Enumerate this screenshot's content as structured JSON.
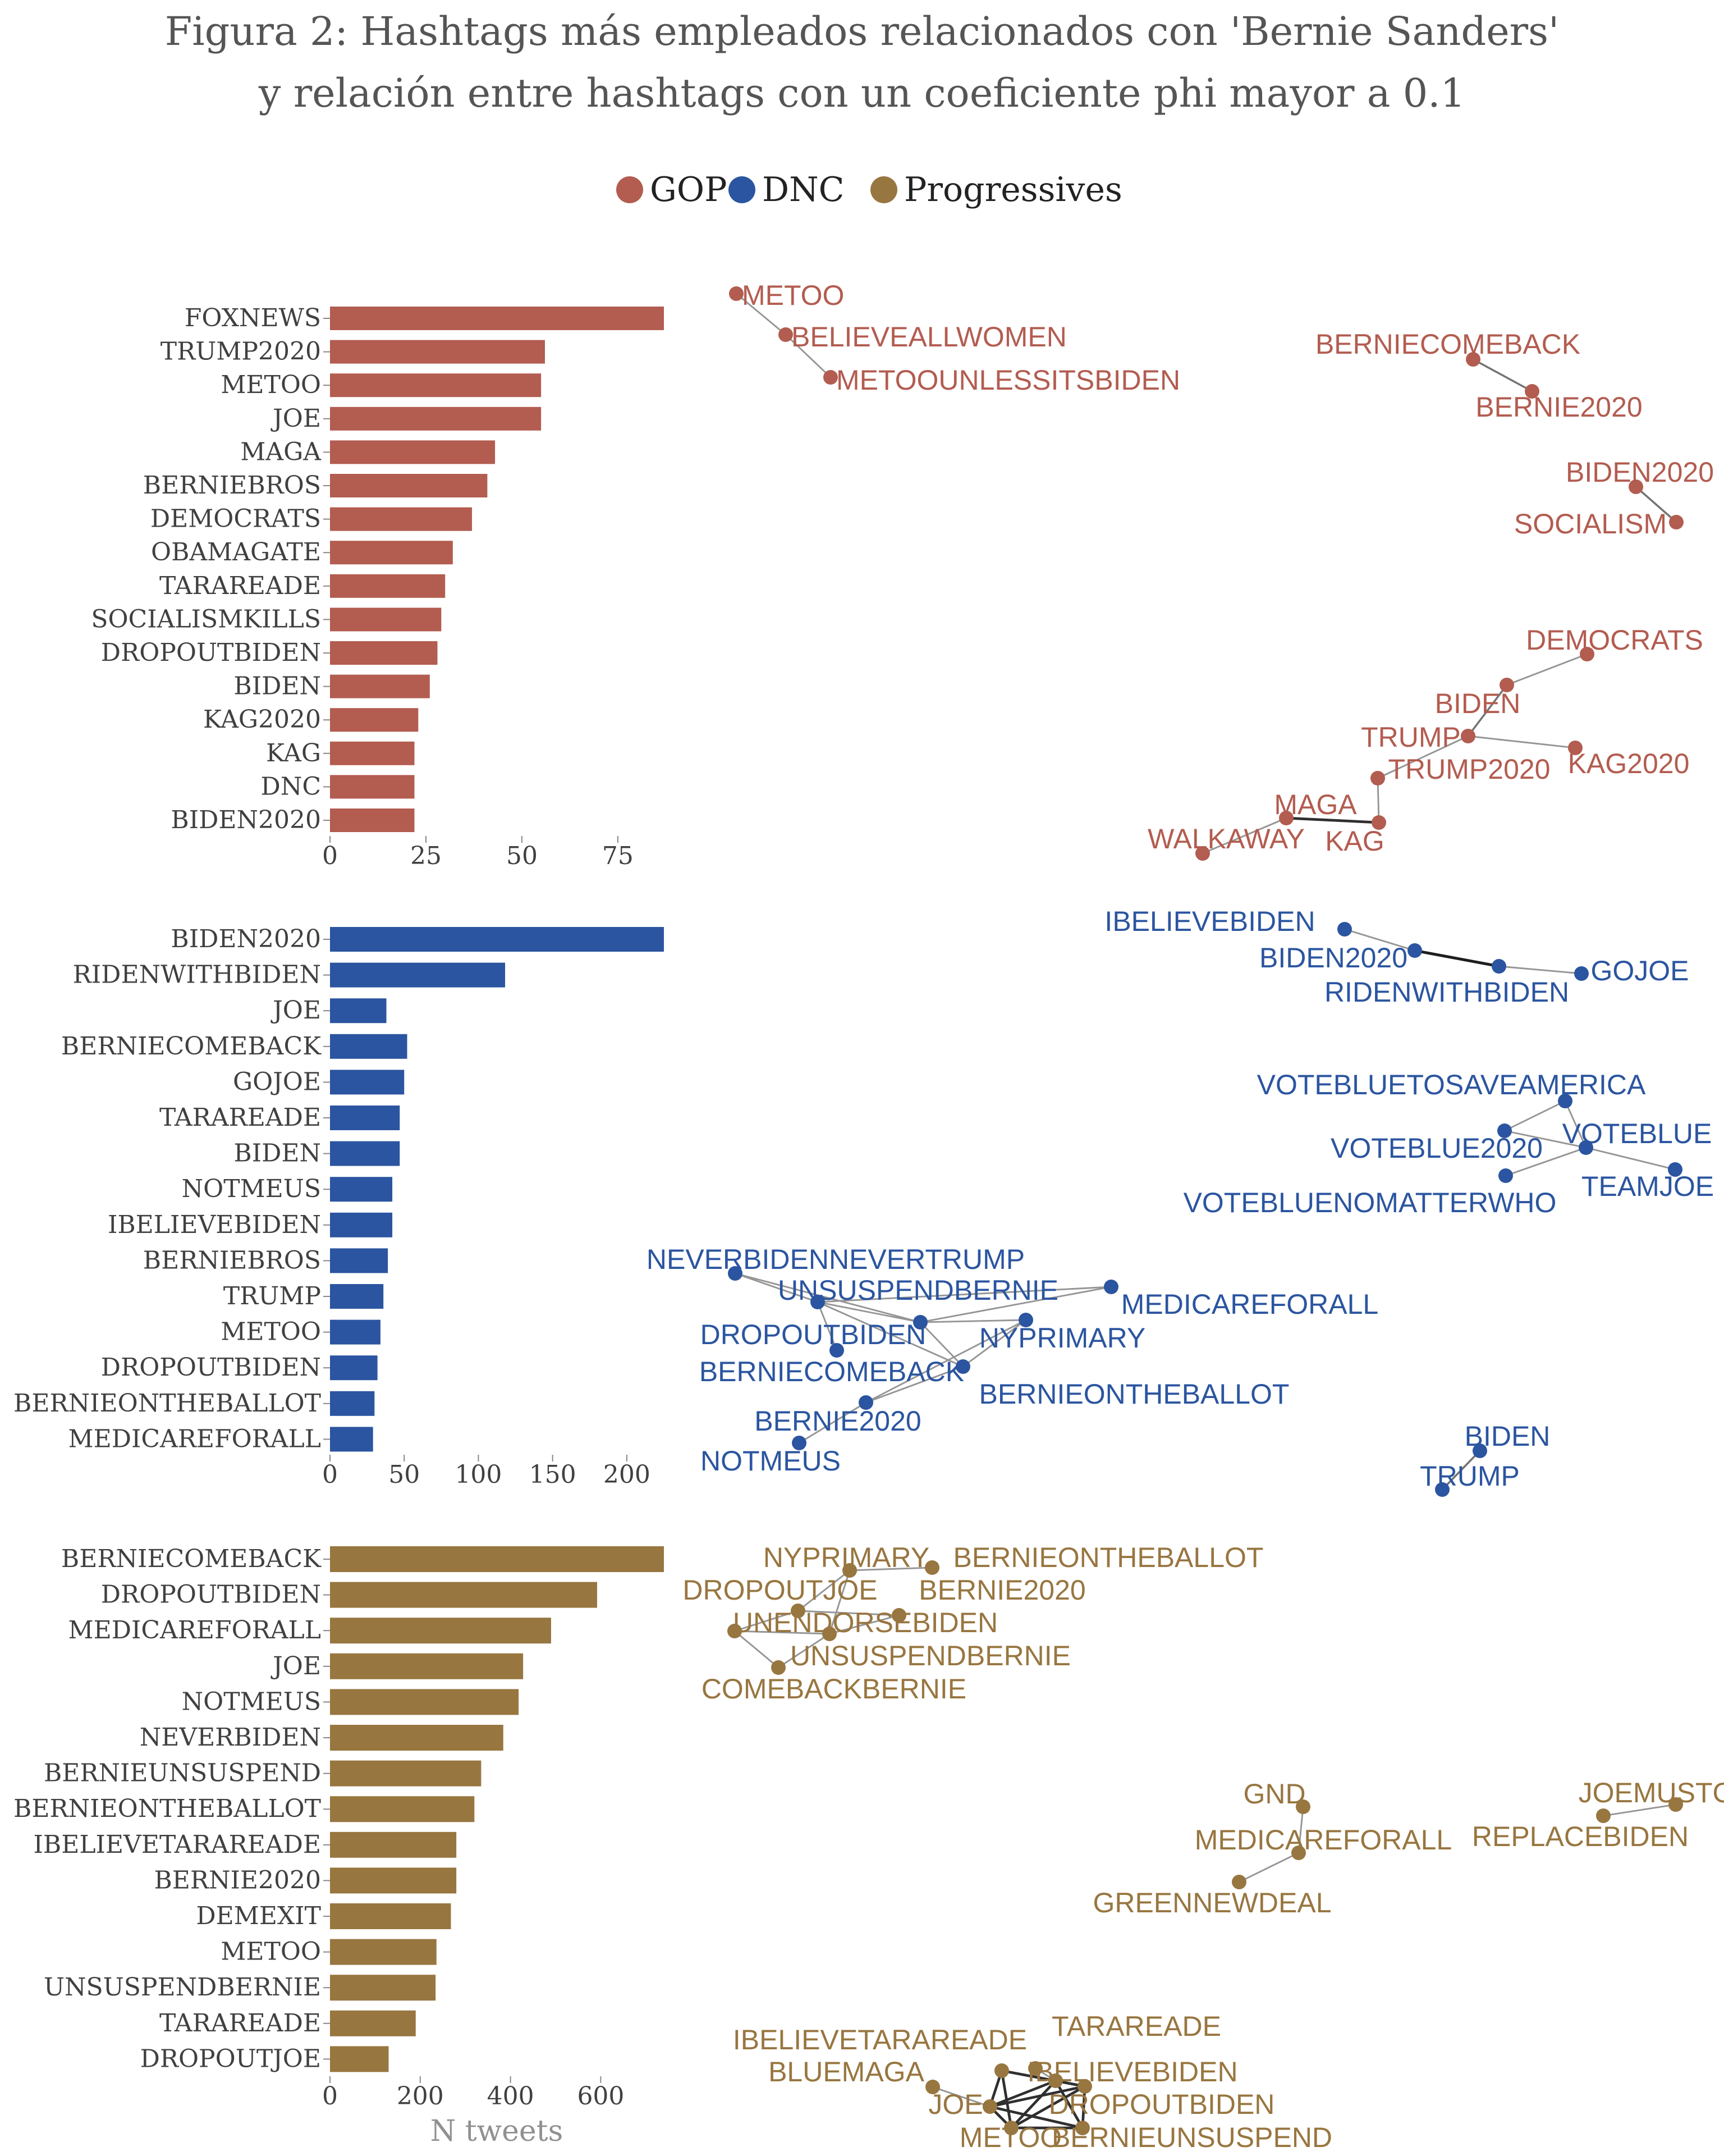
{
  "title_line1": "Figura 2: Hashtags más empleados relacionados con 'Bernie Sanders'",
  "title_line2": "y relación entre hashtags con un coeficiente phi mayor a 0.1",
  "legend": [
    {
      "label": "GOP",
      "color": "#b35c50"
    },
    {
      "label": "DNC",
      "color": "#2b55a0"
    },
    {
      "label": "Progressives",
      "color": "#987640"
    }
  ],
  "x_axis_label": "N tweets",
  "text_color": "#404040",
  "chart_data": [
    {
      "type": "bar",
      "orientation": "horizontal",
      "group": "GOP",
      "color": "#b35c50",
      "categories": [
        "FOXNEWS",
        "TRUMP2020",
        "METOO",
        "JOE",
        "MAGA",
        "BERNIEBROS",
        "DEMOCRATS",
        "OBAMAGATE",
        "TARAREADE",
        "SOCIALISMKILLS",
        "DROPOUTBIDEN",
        "BIDEN",
        "KAG2020",
        "KAG",
        "DNC",
        "BIDEN2020"
      ],
      "values": [
        87,
        56,
        55,
        55,
        43,
        41,
        37,
        32,
        30,
        29,
        28,
        26,
        23,
        22,
        22,
        22
      ],
      "xlim": [
        0,
        87
      ],
      "ticks": [
        0,
        25,
        50,
        75
      ]
    },
    {
      "type": "bar",
      "orientation": "horizontal",
      "group": "DNC",
      "color": "#2b55a0",
      "categories": [
        "BIDEN2020",
        "RIDENWITHBIDEN",
        "JOE",
        "BERNIECOMEBACK",
        "GOJOE",
        "TARAREADE",
        "BIDEN",
        "NOTMEUS",
        "IBELIEVEBIDEN",
        "BERNIEBROS",
        "TRUMP",
        "METOO",
        "DROPOUTBIDEN",
        "BERNIEONTHEBALLOT",
        "MEDICAREFORALL"
      ],
      "values": [
        225,
        118,
        38,
        52,
        50,
        47,
        47,
        42,
        42,
        39,
        36,
        34,
        32,
        30,
        29
      ],
      "xlim": [
        0,
        225
      ],
      "ticks": [
        0,
        50,
        100,
        150,
        200
      ]
    },
    {
      "type": "bar",
      "orientation": "horizontal",
      "group": "Progressives",
      "color": "#987640",
      "categories": [
        "BERNIECOMEBACK",
        "DROPOUTBIDEN",
        "MEDICAREFORALL",
        "JOE",
        "NOTMEUS",
        "NEVERBIDEN",
        "BERNIEUNSUSPEND",
        "BERNIEONTHEBALLOT",
        "IBELIEVETARAREADE",
        "BERNIE2020",
        "DEMEXIT",
        "METOO",
        "UNSUSPENDBERNIE",
        "TARAREADE",
        "DROPOUTJOE"
      ],
      "values": [
        740,
        592,
        490,
        428,
        418,
        384,
        335,
        320,
        280,
        280,
        268,
        236,
        234,
        190,
        130
      ],
      "xlim": [
        0,
        740
      ],
      "ticks": [
        0,
        200,
        400,
        600
      ]
    }
  ],
  "networks": [
    {
      "group": "GOP",
      "color": "#b35c50",
      "nodes": [
        {
          "id": "METOO",
          "label": "METOO"
        },
        {
          "id": "BELIEVEALLWOMEN",
          "label": "BELIEVEALLWOMEN"
        },
        {
          "id": "METOOUNLESSITSBIDEN",
          "label": "METOOUNLESSITSBIDEN"
        },
        {
          "id": "BERNIECOMEBACK",
          "label": "BERNIECOMEBACK"
        },
        {
          "id": "BERNIE2020",
          "label": "BERNIE2020"
        },
        {
          "id": "BIDEN2020",
          "label": "BIDEN2020"
        },
        {
          "id": "SOCIALISM",
          "label": "SOCIALISM"
        },
        {
          "id": "DEMOCRATS",
          "label": "DEMOCRATS"
        },
        {
          "id": "BIDEN",
          "label": "BIDEN"
        },
        {
          "id": "TRUMP",
          "label": "TRUMP"
        },
        {
          "id": "KAG2020",
          "label": "KAG2020"
        },
        {
          "id": "TRUMP2020",
          "label": "TRUMP2020"
        },
        {
          "id": "MAGA",
          "label": "MAGA"
        },
        {
          "id": "KAG",
          "label": "KAG"
        },
        {
          "id": "WALKAWAY",
          "label": "WALKAWAY"
        }
      ],
      "edges": [
        [
          "METOO",
          "BELIEVEALLWOMEN",
          0.3
        ],
        [
          "BELIEVEALLWOMEN",
          "METOOUNLESSITSBIDEN",
          0.3
        ],
        [
          "BERNIECOMEBACK",
          "BERNIE2020",
          0.5
        ],
        [
          "BIDEN2020",
          "SOCIALISM",
          0.5
        ],
        [
          "DEMOCRATS",
          "BIDEN",
          0.3
        ],
        [
          "BIDEN",
          "TRUMP",
          0.5
        ],
        [
          "TRUMP",
          "KAG2020",
          0.3
        ],
        [
          "TRUMP",
          "TRUMP2020",
          0.3
        ],
        [
          "TRUMP2020",
          "KAG",
          0.3
        ],
        [
          "MAGA",
          "KAG",
          0.9
        ],
        [
          "MAGA",
          "WALKAWAY",
          0.3
        ]
      ]
    },
    {
      "group": "DNC",
      "color": "#2b55a0",
      "nodes": [
        {
          "id": "IBELIEVEBIDEN",
          "label": "IBELIEVEBIDEN"
        },
        {
          "id": "BIDEN2020",
          "label": "BIDEN2020"
        },
        {
          "id": "RIDENWITHBIDEN",
          "label": "RIDENWITHBIDEN"
        },
        {
          "id": "GOJOE",
          "label": "GOJOE"
        },
        {
          "id": "VOTEBLUETOSAVEAMERICA",
          "label": "VOTEBLUETOSAVEAMERICA"
        },
        {
          "id": "VOTEBLUE2020",
          "label": "VOTEBLUE2020"
        },
        {
          "id": "VOTEBLUE",
          "label": "VOTEBLUE"
        },
        {
          "id": "VOTEBLUENOMATTERWHO",
          "label": "VOTEBLUENOMATTERWHO"
        },
        {
          "id": "TEAMJOE",
          "label": "TEAMJOE"
        },
        {
          "id": "NEVERBIDENNEVERTRUMP",
          "label": "NEVERBIDENNEVERTRUMP"
        },
        {
          "id": "UNSUSPENDBERNIE",
          "label": "UNSUSPENDBERNIE"
        },
        {
          "id": "MEDICAREFORALL",
          "label": "MEDICAREFORALL"
        },
        {
          "id": "DROPOUTBIDEN",
          "label": "DROPOUTBIDEN"
        },
        {
          "id": "NYPRIMARY",
          "label": "NYPRIMARY"
        },
        {
          "id": "BERNIECOMEBACK",
          "label": "BERNIECOMEBACK"
        },
        {
          "id": "BERNIEONTHEBALLOT",
          "label": "BERNIEONTHEBALLOT"
        },
        {
          "id": "BERNIE2020",
          "label": "BERNIE2020"
        },
        {
          "id": "NOTMEUS",
          "label": "NOTMEUS"
        },
        {
          "id": "BIDEN",
          "label": "BIDEN"
        },
        {
          "id": "TRUMP",
          "label": "TRUMP"
        }
      ],
      "edges": [
        [
          "IBELIEVEBIDEN",
          "BIDEN2020",
          0.3
        ],
        [
          "BIDEN2020",
          "RIDENWITHBIDEN",
          1.0
        ],
        [
          "RIDENWITHBIDEN",
          "GOJOE",
          0.3
        ],
        [
          "VOTEBLUETOSAVEAMERICA",
          "VOTEBLUE2020",
          0.3
        ],
        [
          "VOTEBLUETOSAVEAMERICA",
          "VOTEBLUE",
          0.3
        ],
        [
          "VOTEBLUE2020",
          "VOTEBLUE",
          0.3
        ],
        [
          "VOTEBLUE",
          "VOTEBLUENOMATTERWHO",
          0.3
        ],
        [
          "VOTEBLUE",
          "TEAMJOE",
          0.3
        ],
        [
          "NEVERBIDENNEVERTRUMP",
          "UNSUSPENDBERNIE",
          0.3
        ],
        [
          "NEVERBIDENNEVERTRUMP",
          "NYPRIMARY",
          0.3
        ],
        [
          "UNSUSPENDBERNIE",
          "MEDICAREFORALL",
          0.3
        ],
        [
          "UNSUSPENDBERNIE",
          "NYPRIMARY",
          0.3
        ],
        [
          "UNSUSPENDBERNIE",
          "BERNIECOMEBACK",
          0.3
        ],
        [
          "UNSUSPENDBERNIE",
          "DROPOUTBIDEN",
          0.3
        ],
        [
          "NYPRIMARY",
          "MEDICAREFORALL",
          0.3
        ],
        [
          "NYPRIMARY",
          "BERNIECOMEBACK",
          0.3
        ],
        [
          "NYPRIMARY",
          "BERNIEONTHEBALLOT",
          0.3
        ],
        [
          "BERNIECOMEBACK",
          "BERNIEONTHEBALLOT",
          0.3
        ],
        [
          "BERNIEONTHEBALLOT",
          "BERNIE2020",
          0.3
        ],
        [
          "BERNIECOMEBACK",
          "BERNIE2020",
          0.3
        ],
        [
          "BERNIE2020",
          "NOTMEUS",
          0.3
        ],
        [
          "BIDEN",
          "TRUMP",
          0.5
        ]
      ]
    },
    {
      "group": "Progressives",
      "color": "#987640",
      "nodes": [
        {
          "id": "NYPRIMARY",
          "label": "NYPRIMARY"
        },
        {
          "id": "BERNIEONTHEBALLOT",
          "label": "BERNIEONTHEBALLOT"
        },
        {
          "id": "DROPOUTJOE",
          "label": "DROPOUTJOE"
        },
        {
          "id": "BERNIE2020",
          "label": "BERNIE2020"
        },
        {
          "id": "UNENDORSEBIDEN",
          "label": "UNENDORSEBIDEN"
        },
        {
          "id": "UNSUSPENDBERNIE",
          "label": "UNSUSPENDBERNIE"
        },
        {
          "id": "COMEBACKBERNIE",
          "label": "COMEBACKBERNIE"
        },
        {
          "id": "GND",
          "label": "GND"
        },
        {
          "id": "MEDICAREFORALL",
          "label": "MEDICAREFORALL"
        },
        {
          "id": "GREENNEWDEAL",
          "label": "GREENNEWDEAL"
        },
        {
          "id": "JOEMUSTGO",
          "label": "JOEMUSTGO"
        },
        {
          "id": "REPLACEBIDEN",
          "label": "REPLACEBIDEN"
        },
        {
          "id": "IBELIEVETARAREADE",
          "label": "IBELIEVETARAREADE"
        },
        {
          "id": "TARAREADE",
          "label": "TARAREADE"
        },
        {
          "id": "BLUEMAGA",
          "label": "BLUEMAGA"
        },
        {
          "id": "IBELIEVEBIDEN",
          "label": "IBELIEVEBIDEN"
        },
        {
          "id": "JOE",
          "label": "JOE"
        },
        {
          "id": "DROPOUTBIDEN",
          "label": "DROPOUTBIDEN"
        },
        {
          "id": "METOO",
          "label": "METOO"
        },
        {
          "id": "BERNIEUNSUSPEND",
          "label": "BERNIEUNSUSPEND"
        }
      ],
      "edges": [
        [
          "NYPRIMARY",
          "BERNIEONTHEBALLOT",
          0.3
        ],
        [
          "NYPRIMARY",
          "DROPOUTJOE",
          0.3
        ],
        [
          "NYPRIMARY",
          "UNSUSPENDBERNIE",
          0.3
        ],
        [
          "BERNIE2020",
          "DROPOUTJOE",
          0.3
        ],
        [
          "BERNIE2020",
          "UNSUSPENDBERNIE",
          0.3
        ],
        [
          "DROPOUTJOE",
          "UNENDORSEBIDEN",
          0.3
        ],
        [
          "UNENDORSEBIDEN",
          "UNSUSPENDBERNIE",
          0.3
        ],
        [
          "UNENDORSEBIDEN",
          "COMEBACKBERNIE",
          0.3
        ],
        [
          "UNSUSPENDBERNIE",
          "COMEBACKBERNIE",
          0.3
        ],
        [
          "GND",
          "MEDICAREFORALL",
          0.3
        ],
        [
          "MEDICAREFORALL",
          "GREENNEWDEAL",
          0.3
        ],
        [
          "JOEMUSTGO",
          "REPLACEBIDEN",
          0.3
        ],
        [
          "BLUEMAGA",
          "JOE",
          0.3
        ],
        [
          "IBELIEVETARAREADE",
          "DROPOUTBIDEN",
          0.9
        ],
        [
          "IBELIEVETARAREADE",
          "JOE",
          0.9
        ],
        [
          "IBELIEVETARAREADE",
          "METOO",
          0.9
        ],
        [
          "IBELIEVETARAREADE",
          "IBELIEVEBIDEN",
          0.9
        ],
        [
          "IBELIEVEBIDEN",
          "JOE",
          0.9
        ],
        [
          "IBELIEVEBIDEN",
          "METOO",
          0.9
        ],
        [
          "IBELIEVEBIDEN",
          "DROPOUTBIDEN",
          0.9
        ],
        [
          "IBELIEVEBIDEN",
          "BERNIEUNSUSPEND",
          0.9
        ],
        [
          "JOE",
          "DROPOUTBIDEN",
          0.9
        ],
        [
          "JOE",
          "METOO",
          0.9
        ],
        [
          "JOE",
          "BERNIEUNSUSPEND",
          0.9
        ],
        [
          "DROPOUTBIDEN",
          "METOO",
          0.9
        ],
        [
          "DROPOUTBIDEN",
          "BERNIEUNSUSPEND",
          0.9
        ],
        [
          "METOO",
          "BERNIEUNSUSPEND",
          0.9
        ],
        [
          "TARAREADE",
          "IBELIEVEBIDEN",
          0.3
        ]
      ]
    }
  ]
}
